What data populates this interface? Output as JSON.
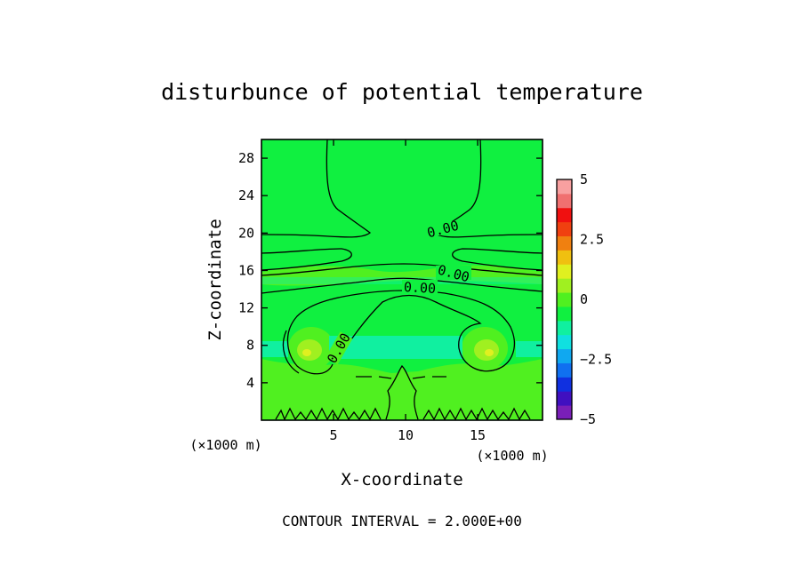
{
  "chart_data": {
    "type": "heatmap",
    "title": "disturbunce of potential temperature",
    "xlabel": "X-coordinate",
    "ylabel": "Z-coordinate",
    "x_unit": "(×1000 m)",
    "y_unit": "(×1000 m)",
    "xlim": [
      0,
      19.5
    ],
    "ylim": [
      0,
      30
    ],
    "x_ticks": [
      5,
      10,
      15
    ],
    "y_ticks": [
      4,
      8,
      12,
      16,
      20,
      24,
      28
    ],
    "footer": "CONTOUR INTERVAL = 2.000E+00",
    "contour_labels": [
      "0.00",
      "0.00",
      "0.00",
      "0.00"
    ],
    "colorbar": {
      "min": -5,
      "max": 5,
      "tick_values": [
        5,
        2.5,
        0,
        -2.5,
        -5
      ],
      "tick_labels": [
        "5",
        "2.5",
        "0",
        "−2.5",
        "−5"
      ],
      "colors": [
        "#7a1fb8",
        "#4010c0",
        "#1030e0",
        "#1070f0",
        "#10a8f0",
        "#10e0e0",
        "#10f0a0",
        "#10f040",
        "#50f020",
        "#a0f020",
        "#e0f020",
        "#f0c010",
        "#f08010",
        "#f04010",
        "#f01010",
        "#f07070",
        "#f8a0a0"
      ]
    }
  }
}
